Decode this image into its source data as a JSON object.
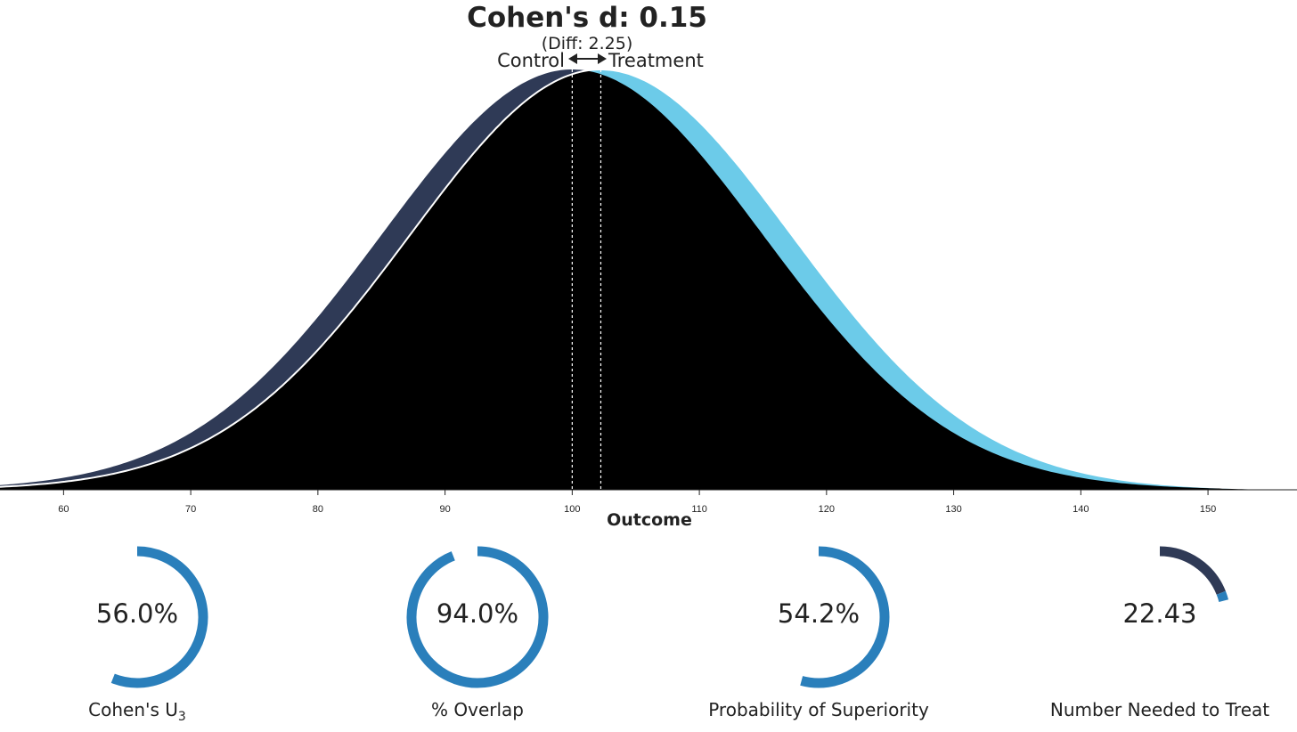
{
  "chart_data": {
    "type": "area",
    "title": "Cohen's d: 0.15",
    "subtitle": "(Diff: 2.25)",
    "xlabel": "Outcome",
    "ylabel": "",
    "xlim": [
      55,
      157
    ],
    "xticks": [
      60,
      70,
      80,
      90,
      100,
      110,
      120,
      130,
      140,
      150
    ],
    "grid": false,
    "series": [
      {
        "name": "Control",
        "distribution": "normal",
        "mean": 100,
        "sd": 15,
        "color": "#2f3a56"
      },
      {
        "name": "Treatment",
        "distribution": "normal",
        "mean": 102.25,
        "sd": 15,
        "color": "#6ccbe9"
      }
    ],
    "overlap_color": "#000000",
    "control_mean": 100,
    "treatment_mean": 102.25,
    "difference": 2.25,
    "cohens_d": 0.15
  },
  "metrics": [
    {
      "value_text": "56.0%",
      "label": "Cohen's U",
      "label_sub": "3",
      "fraction": 0.56,
      "color": "#2a7fbb"
    },
    {
      "value_text": "94.0%",
      "label": "% Overlap",
      "label_sub": "",
      "fraction": 0.94,
      "color": "#2a7fbb"
    },
    {
      "value_text": "54.2%",
      "label": "Probability of Superiority",
      "label_sub": "",
      "fraction": 0.542,
      "color": "#2a7fbb"
    },
    {
      "value_text": "22.43",
      "label": "Number Needed to Treat",
      "label_sub": "",
      "nnt": 22.43,
      "fraction_control": 0.19,
      "fraction_treatment": 0.02,
      "color_control": "#2f3a56",
      "color_treatment": "#2a7fbb"
    }
  ]
}
